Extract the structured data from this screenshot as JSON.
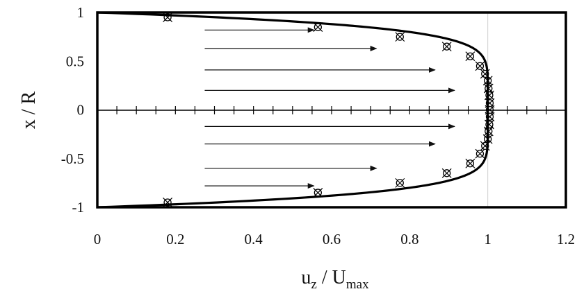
{
  "chart_data": {
    "type": "line",
    "title": "",
    "xlabel": {
      "main": "u",
      "sub": "z",
      "mid": " / U",
      "sub2": "max"
    },
    "ylabel": "x / R",
    "xlim": [
      0,
      1.2
    ],
    "ylim": [
      -1,
      1
    ],
    "x_ticks": [
      {
        "value": 0,
        "label": "0"
      },
      {
        "value": 0.2,
        "label": "0.2"
      },
      {
        "value": 0.4,
        "label": "0.4"
      },
      {
        "value": 0.6,
        "label": "0.6"
      },
      {
        "value": 0.8,
        "label": "0.8"
      },
      {
        "value": 1.0,
        "label": "1"
      },
      {
        "value": 1.2,
        "label": "1.2"
      }
    ],
    "y_ticks": [
      {
        "value": 1,
        "label": "1"
      },
      {
        "value": 0.5,
        "label": "0.5"
      },
      {
        "value": 0,
        "label": "0"
      },
      {
        "value": -0.5,
        "label": "-0.5"
      },
      {
        "value": -1,
        "label": "-1"
      }
    ],
    "minor_tick_step": 0.05,
    "grid": false,
    "border": true,
    "gridline_x": 1.0,
    "profile_curve": {
      "description_of_shape": "u/Umax = 1 - (x/R)^n",
      "exponent": 7.2
    },
    "series": [
      {
        "marker": "circle-x",
        "points": [
          [
            0.18,
            0.95
          ],
          [
            0.565,
            0.85
          ],
          [
            0.775,
            0.75
          ],
          [
            0.895,
            0.65
          ],
          [
            0.955,
            0.55
          ],
          [
            0.98,
            0.45
          ],
          [
            0.993,
            0.37
          ],
          [
            1.0,
            0.3
          ],
          [
            1.002,
            0.22
          ],
          [
            1.004,
            0.15
          ],
          [
            1.005,
            0.07
          ],
          [
            1.005,
            0.0
          ],
          [
            1.005,
            -0.07
          ],
          [
            1.004,
            -0.15
          ],
          [
            1.002,
            -0.22
          ],
          [
            1.0,
            -0.3
          ],
          [
            0.993,
            -0.37
          ],
          [
            0.98,
            -0.45
          ],
          [
            0.955,
            -0.55
          ],
          [
            0.895,
            -0.65
          ],
          [
            0.775,
            -0.75
          ],
          [
            0.565,
            -0.85
          ],
          [
            0.18,
            -0.95
          ]
        ]
      }
    ],
    "arrows": [
      {
        "y": 0.82,
        "x_start": 0.275,
        "x_end": 0.555
      },
      {
        "y": 0.63,
        "x_start": 0.275,
        "x_end": 0.715
      },
      {
        "y": 0.41,
        "x_start": 0.275,
        "x_end": 0.865
      },
      {
        "y": 0.2,
        "x_start": 0.275,
        "x_end": 0.915
      },
      {
        "y": -0.17,
        "x_start": 0.275,
        "x_end": 0.915
      },
      {
        "y": -0.35,
        "x_start": 0.275,
        "x_end": 0.865
      },
      {
        "y": -0.6,
        "x_start": 0.275,
        "x_end": 0.715
      },
      {
        "y": -0.78,
        "x_start": 0.275,
        "x_end": 0.555
      }
    ]
  }
}
